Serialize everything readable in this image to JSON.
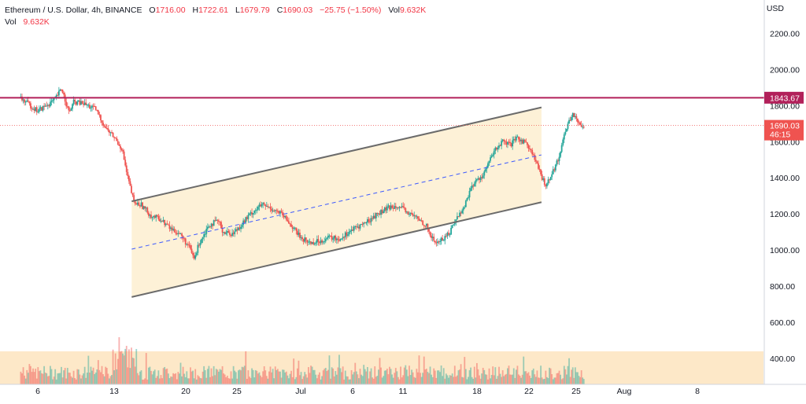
{
  "legend": {
    "symbol": "Ethereum / U.S. Dollar, 4h, BINANCE",
    "open_label": "O",
    "open": "1716.00",
    "high_label": "H",
    "high": "1722.61",
    "low_label": "L",
    "low": "1679.79",
    "close_label": "C",
    "close": "1690.03",
    "change": "−25.75 (−1.50%)",
    "vol_label": "Vol",
    "vol": "9.632K",
    "vol_row_label": "Vol",
    "vol_row_value": "9.632K"
  },
  "price_axis": {
    "currency": "USD",
    "ticks": [
      "2200.00",
      "2000.00",
      "1800.00",
      "1600.00",
      "1400.00",
      "1200.00",
      "1000.00",
      "800.00",
      "600.00",
      "400.00"
    ]
  },
  "time_axis": {
    "ticks": [
      "6",
      "13",
      "20",
      "25",
      "Jul",
      "6",
      "11",
      "18",
      "22",
      "25",
      "Aug",
      "8"
    ]
  },
  "badges": {
    "resistance": "1843.67",
    "last_price": "1690.03",
    "countdown": "46:15"
  },
  "colors": {
    "up": "#26a69a",
    "down": "#ef5350",
    "resistance": "#b2205a",
    "channel_fill": "#fdf1d7",
    "channel_line": "#6b6b6b",
    "midline": "#3d5afe",
    "volume_zone": "#fde8c8"
  },
  "chart_data": {
    "type": "candlestick",
    "title": "Ethereum / U.S. Dollar, 4h, BINANCE",
    "ylabel": "USD",
    "ylim": [
      260,
      2360
    ],
    "x_ticks": [
      "6",
      "13",
      "20",
      "25",
      "Jul",
      "6",
      "11",
      "18",
      "22",
      "25",
      "Aug",
      "8"
    ],
    "resistance_level": 1843.67,
    "last_price": 1690.03,
    "ohlc_last": {
      "open": 1716.0,
      "high": 1722.61,
      "low": 1679.79,
      "close": 1690.03
    },
    "volume_last": "9.632K",
    "channel_upper": [
      [
        2.3,
        1270
      ],
      [
        10.8,
        1790
      ]
    ],
    "channel_lower": [
      [
        2.3,
        740
      ],
      [
        10.8,
        1265
      ]
    ],
    "channel_mid": [
      [
        2.3,
        1005
      ],
      [
        10.8,
        1527
      ]
    ],
    "path": [
      [
        0,
        1840
      ],
      [
        0.35,
        1770
      ],
      [
        0.7,
        1830
      ],
      [
        0.85,
        1895
      ],
      [
        1.0,
        1760
      ],
      [
        1.1,
        1820
      ],
      [
        1.3,
        1810
      ],
      [
        1.55,
        1780
      ],
      [
        1.75,
        1680
      ],
      [
        1.95,
        1620
      ],
      [
        2.1,
        1560
      ],
      [
        2.2,
        1420
      ],
      [
        2.35,
        1260
      ],
      [
        2.5,
        1250
      ],
      [
        2.7,
        1190
      ],
      [
        2.9,
        1170
      ],
      [
        3.1,
        1120
      ],
      [
        3.3,
        1090
      ],
      [
        3.5,
        1010
      ],
      [
        3.6,
        950
      ],
      [
        3.7,
        1040
      ],
      [
        3.9,
        1140
      ],
      [
        4.1,
        1160
      ],
      [
        4.2,
        1100
      ],
      [
        4.4,
        1090
      ],
      [
        4.6,
        1150
      ],
      [
        4.8,
        1210
      ],
      [
        5.0,
        1250
      ],
      [
        5.2,
        1230
      ],
      [
        5.4,
        1200
      ],
      [
        5.6,
        1140
      ],
      [
        5.8,
        1070
      ],
      [
        6.0,
        1040
      ],
      [
        6.2,
        1050
      ],
      [
        6.4,
        1070
      ],
      [
        6.6,
        1060
      ],
      [
        6.8,
        1100
      ],
      [
        7.0,
        1130
      ],
      [
        7.2,
        1160
      ],
      [
        7.4,
        1200
      ],
      [
        7.6,
        1230
      ],
      [
        7.8,
        1250
      ],
      [
        8.0,
        1210
      ],
      [
        8.2,
        1180
      ],
      [
        8.4,
        1140
      ],
      [
        8.5,
        1080
      ],
      [
        8.6,
        1040
      ],
      [
        8.75,
        1060
      ],
      [
        8.9,
        1100
      ],
      [
        9.0,
        1160
      ],
      [
        9.2,
        1240
      ],
      [
        9.3,
        1320
      ],
      [
        9.4,
        1370
      ],
      [
        9.6,
        1420
      ],
      [
        9.7,
        1480
      ],
      [
        9.85,
        1560
      ],
      [
        10.0,
        1600
      ],
      [
        10.15,
        1580
      ],
      [
        10.3,
        1620
      ],
      [
        10.5,
        1590
      ],
      [
        10.6,
        1540
      ],
      [
        10.7,
        1480
      ],
      [
        10.8,
        1400
      ],
      [
        10.9,
        1360
      ],
      [
        11.0,
        1420
      ],
      [
        11.15,
        1500
      ],
      [
        11.25,
        1620
      ],
      [
        11.35,
        1700
      ],
      [
        11.45,
        1760
      ],
      [
        11.55,
        1700
      ],
      [
        11.7,
        1690
      ]
    ]
  }
}
